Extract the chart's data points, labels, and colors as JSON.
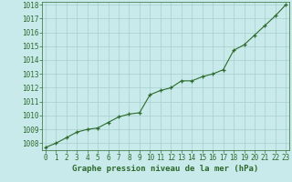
{
  "x": [
    0,
    1,
    2,
    3,
    4,
    5,
    6,
    7,
    8,
    9,
    10,
    11,
    12,
    13,
    14,
    15,
    16,
    17,
    18,
    19,
    20,
    21,
    22,
    23
  ],
  "y": [
    1007.7,
    1008.0,
    1008.4,
    1008.8,
    1009.0,
    1009.1,
    1009.5,
    1009.9,
    1010.1,
    1010.2,
    1011.5,
    1011.8,
    1012.0,
    1012.5,
    1012.5,
    1012.8,
    1013.0,
    1013.3,
    1014.7,
    1015.1,
    1015.8,
    1016.5,
    1017.2,
    1018.0
  ],
  "ylim": [
    1007.5,
    1018.2
  ],
  "yticks": [
    1008,
    1009,
    1010,
    1011,
    1012,
    1013,
    1014,
    1015,
    1016,
    1017,
    1018
  ],
  "xlim": [
    -0.3,
    23.3
  ],
  "xticks": [
    0,
    1,
    2,
    3,
    4,
    5,
    6,
    7,
    8,
    9,
    10,
    11,
    12,
    13,
    14,
    15,
    16,
    17,
    18,
    19,
    20,
    21,
    22,
    23
  ],
  "xlabel": "Graphe pression niveau de la mer (hPa)",
  "line_color": "#2d6a2d",
  "marker": "+",
  "bg_color": "#c8eaea",
  "grid_color": "#a8cece",
  "tick_label_color": "#2d6a2d",
  "xlabel_color": "#2d6a2d",
  "tick_fontsize": 5.5,
  "xlabel_fontsize": 6.5,
  "linewidth": 0.8,
  "markersize": 3.5,
  "markeredgewidth": 0.9
}
